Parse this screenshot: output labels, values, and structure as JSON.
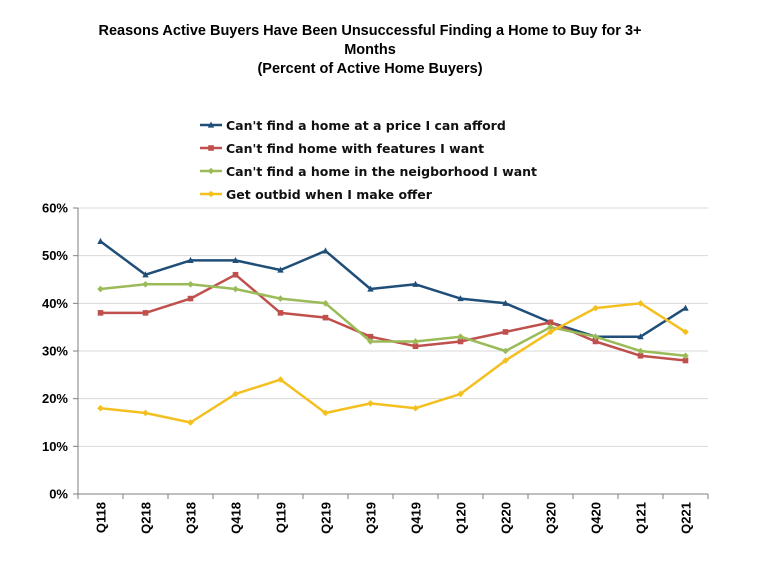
{
  "chart_data": {
    "type": "line",
    "title": [
      "Reasons Active Buyers Have Been Unsuccessful Finding a Home to Buy for 3+",
      "Months",
      "(Percent of Active Home Buyers)"
    ],
    "xlabel": "",
    "ylabel": "",
    "categories": [
      "Q118",
      "Q218",
      "Q318",
      "Q418",
      "Q119",
      "Q219",
      "Q319",
      "Q419",
      "Q120",
      "Q220",
      "Q320",
      "Q420",
      "Q121",
      "Q221"
    ],
    "ylim": [
      0,
      60
    ],
    "y_ticks": [
      "0%",
      "10%",
      "20%",
      "30%",
      "40%",
      "50%",
      "60%"
    ],
    "y_tick_values": [
      0,
      10,
      20,
      30,
      40,
      50,
      60
    ],
    "grid": "horizontal",
    "legend_position": "top",
    "series": [
      {
        "name": "Can't find a home at a price I can afford",
        "color": "#1f4e79",
        "marker": "triangle",
        "values": [
          53,
          46,
          49,
          49,
          47,
          51,
          43,
          44,
          41,
          40,
          36,
          33,
          33,
          39
        ]
      },
      {
        "name": "Can't find home with features I want",
        "color": "#c0504d",
        "marker": "square",
        "values": [
          38,
          38,
          41,
          46,
          38,
          37,
          33,
          31,
          32,
          34,
          36,
          32,
          29,
          28
        ]
      },
      {
        "name": "Can't find a home in the neigborhood I want",
        "color": "#9bbb59",
        "marker": "diamond",
        "values": [
          43,
          44,
          44,
          43,
          41,
          40,
          32,
          32,
          33,
          30,
          35,
          33,
          30,
          29
        ]
      },
      {
        "name": "Get outbid when I make offer",
        "color": "#f4c020",
        "marker": "diamond",
        "values": [
          18,
          17,
          15,
          21,
          24,
          17,
          19,
          18,
          21,
          28,
          34,
          39,
          40,
          34
        ]
      }
    ]
  }
}
